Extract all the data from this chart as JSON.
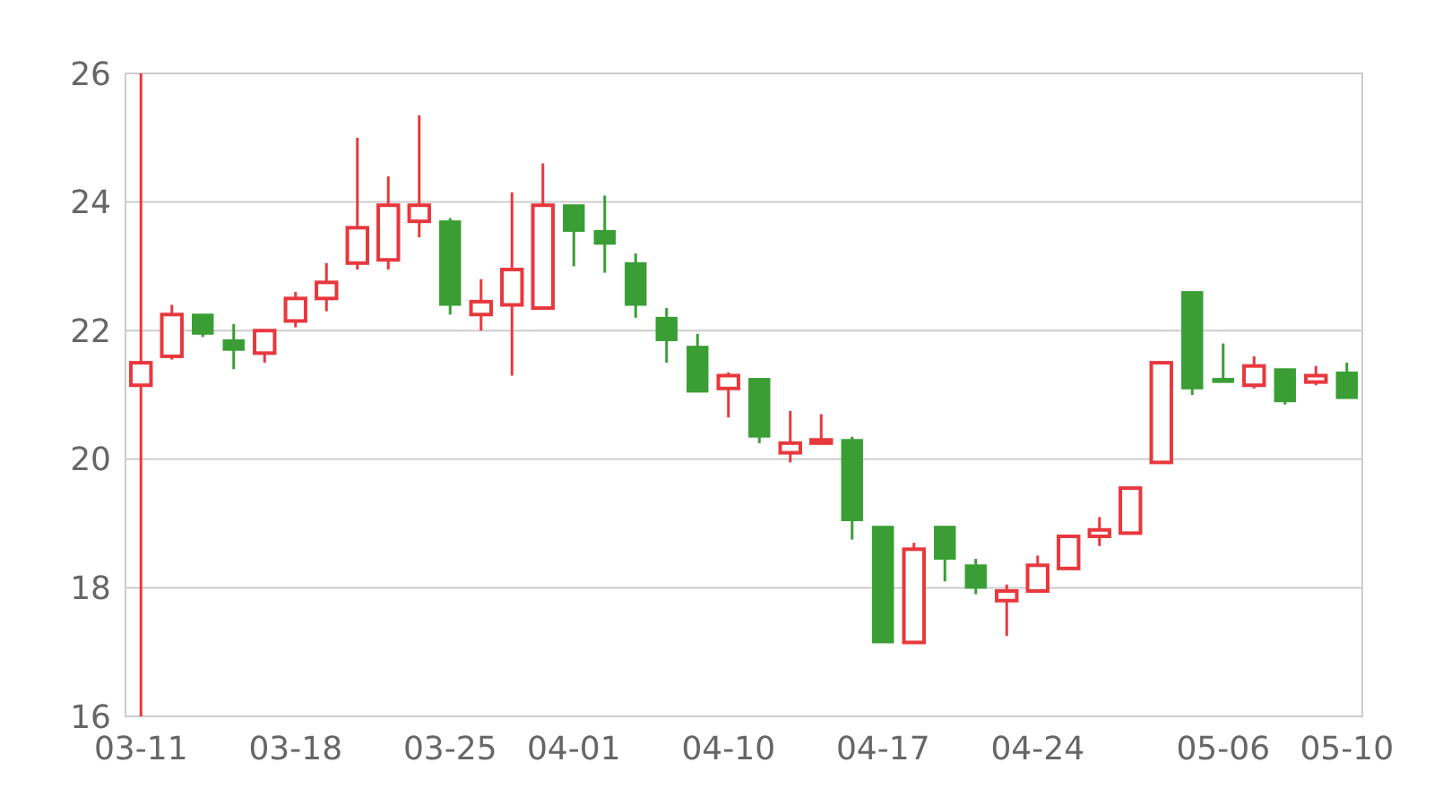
{
  "chart_data": {
    "type": "candlestick",
    "categories": [
      "03-11",
      null,
      null,
      null,
      null,
      "03-18",
      null,
      null,
      null,
      null,
      "03-25",
      null,
      null,
      null,
      "04-01",
      null,
      null,
      null,
      null,
      "04-10",
      null,
      null,
      null,
      null,
      "04-17",
      null,
      null,
      null,
      null,
      "04-24",
      null,
      null,
      null,
      null,
      null,
      "05-06",
      null,
      null,
      null,
      "05-10"
    ],
    "ohlc": [
      [
        21.15,
        26,
        16,
        21.5
      ],
      [
        21.6,
        22.4,
        21.55,
        22.25
      ],
      [
        22.25,
        22.25,
        21.9,
        21.95
      ],
      [
        21.85,
        22.1,
        21.4,
        21.7
      ],
      [
        21.65,
        22.0,
        21.5,
        22.0
      ],
      [
        22.15,
        22.6,
        22.05,
        22.5
      ],
      [
        22.5,
        23.05,
        22.3,
        22.75
      ],
      [
        23.05,
        25.0,
        22.95,
        23.6
      ],
      [
        23.1,
        24.4,
        22.95,
        23.95
      ],
      [
        23.7,
        25.35,
        23.45,
        23.95
      ],
      [
        23.7,
        23.75,
        22.25,
        22.4
      ],
      [
        22.25,
        22.8,
        22.0,
        22.45
      ],
      [
        22.4,
        24.15,
        21.3,
        22.95
      ],
      [
        22.35,
        24.6,
        22.35,
        23.95
      ],
      [
        23.95,
        23.95,
        23.0,
        23.55
      ],
      [
        23.55,
        24.1,
        22.9,
        23.35
      ],
      [
        23.05,
        23.2,
        22.2,
        22.4
      ],
      [
        22.2,
        22.35,
        21.5,
        21.85
      ],
      [
        21.75,
        21.95,
        21.05,
        21.05
      ],
      [
        21.1,
        21.35,
        20.65,
        21.3
      ],
      [
        21.25,
        21.25,
        20.25,
        20.35
      ],
      [
        20.1,
        20.75,
        19.95,
        20.25
      ],
      [
        20.25,
        20.7,
        20.25,
        20.3
      ],
      [
        20.3,
        20.35,
        18.75,
        19.05
      ],
      [
        18.95,
        18.95,
        17.15,
        17.15
      ],
      [
        17.15,
        18.7,
        17.15,
        18.6
      ],
      [
        18.95,
        18.95,
        18.1,
        18.45
      ],
      [
        18.35,
        18.45,
        17.9,
        18.0
      ],
      [
        17.8,
        18.05,
        17.25,
        17.95
      ],
      [
        17.95,
        18.5,
        17.95,
        18.35
      ],
      [
        18.3,
        18.8,
        18.3,
        18.8
      ],
      [
        18.8,
        19.1,
        18.65,
        18.9
      ],
      [
        18.85,
        19.55,
        18.85,
        19.55
      ],
      [
        19.95,
        21.5,
        19.95,
        21.5
      ],
      [
        22.6,
        22.6,
        21.0,
        21.1
      ],
      [
        21.25,
        21.8,
        21.2,
        21.2
      ],
      [
        21.15,
        21.6,
        21.1,
        21.45
      ],
      [
        21.4,
        21.4,
        20.85,
        20.9
      ],
      [
        21.2,
        21.45,
        21.15,
        21.3
      ],
      [
        21.35,
        21.5,
        20.95,
        20.95
      ]
    ],
    "colors": [
      "#e8383d",
      "#e8383d",
      "#3a9e35",
      "#3a9e35",
      "#e8383d",
      "#e8383d",
      "#e8383d",
      "#e8383d",
      "#e8383d",
      "#e8383d",
      "#3a9e35",
      "#e8383d",
      "#e8383d",
      "#e8383d",
      "#3a9e35",
      "#3a9e35",
      "#3a9e35",
      "#3a9e35",
      "#3a9e35",
      "#e8383d",
      "#3a9e35",
      "#e8383d",
      "#e8383d",
      "#3a9e35",
      "#3a9e35",
      "#e8383d",
      "#3a9e35",
      "#3a9e35",
      "#e8383d",
      "#e8383d",
      "#e8383d",
      "#e8383d",
      "#e8383d",
      "#e8383d",
      "#3a9e35",
      "#3a9e35",
      "#e8383d",
      "#3a9e35",
      "#e8383d",
      "#3a9e35"
    ],
    "ylim": [
      16,
      26
    ],
    "yticks": [
      16,
      18,
      20,
      22,
      24,
      26
    ],
    "grid": "y"
  }
}
